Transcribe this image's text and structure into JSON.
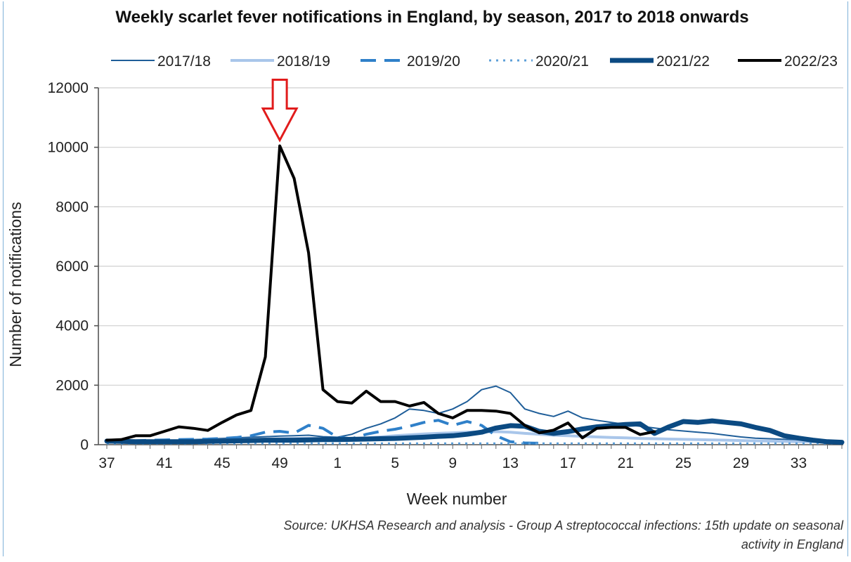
{
  "chart_data": {
    "type": "line",
    "title": "Weekly scarlet fever notifications in England, by season, 2017 to 2018 onwards",
    "xlabel": "Week number",
    "ylabel": "Number of notifications",
    "ylim": [
      0,
      12000
    ],
    "yticks": [
      "0",
      "2000",
      "4000",
      "6000",
      "8000",
      "10000",
      "12000"
    ],
    "xticks": [
      "37",
      "41",
      "45",
      "49",
      "1",
      "5",
      "9",
      "13",
      "17",
      "21",
      "25",
      "29",
      "33"
    ],
    "weeks": [
      37,
      38,
      39,
      40,
      41,
      42,
      43,
      44,
      45,
      46,
      47,
      48,
      49,
      50,
      51,
      52,
      1,
      2,
      3,
      4,
      5,
      6,
      7,
      8,
      9,
      10,
      11,
      12,
      13,
      14,
      15,
      16,
      17,
      18,
      19,
      20,
      21,
      22,
      23,
      24,
      25,
      26,
      27,
      28,
      29,
      30,
      31,
      32,
      33,
      34,
      35,
      36
    ],
    "grid": true,
    "legend_position": "top",
    "series": [
      {
        "name": "2017/18",
        "color": "#1f5e99",
        "width": 2,
        "dash": "",
        "values": [
          100,
          110,
          120,
          130,
          140,
          150,
          170,
          190,
          210,
          230,
          250,
          270,
          290,
          300,
          320,
          270,
          250,
          350,
          550,
          700,
          900,
          1200,
          1150,
          1050,
          1200,
          1450,
          1850,
          1970,
          1750,
          1200,
          1050,
          950,
          1130,
          900,
          820,
          750,
          680,
          620,
          560,
          500,
          460,
          420,
          380,
          320,
          260,
          220,
          200,
          180,
          160,
          140,
          null,
          null
        ]
      },
      {
        "name": "2018/19",
        "color": "#a9c6ea",
        "width": 4,
        "dash": "",
        "values": [
          80,
          90,
          100,
          110,
          120,
          130,
          140,
          150,
          160,
          170,
          180,
          190,
          200,
          210,
          220,
          200,
          180,
          200,
          230,
          260,
          300,
          330,
          360,
          380,
          400,
          420,
          430,
          440,
          420,
          380,
          350,
          320,
          300,
          280,
          260,
          240,
          230,
          210,
          200,
          190,
          180,
          170,
          160,
          150,
          140,
          130,
          120,
          110,
          100,
          100,
          100,
          100
        ]
      },
      {
        "name": "2019/20",
        "color": "#2f80c9",
        "width": 4,
        "dash": "22,12",
        "values": [
          90,
          110,
          130,
          150,
          160,
          170,
          180,
          190,
          210,
          240,
          300,
          420,
          450,
          390,
          650,
          550,
          250,
          200,
          350,
          450,
          520,
          620,
          750,
          820,
          650,
          780,
          650,
          300,
          100,
          60,
          50,
          null,
          null,
          null,
          null,
          null,
          null,
          null,
          null,
          null,
          null,
          null,
          null,
          null,
          null,
          null,
          null,
          null,
          null,
          null,
          null,
          null
        ]
      },
      {
        "name": "2020/21",
        "color": "#5d9fd8",
        "width": 3,
        "dash": "3,7",
        "values": [
          40,
          40,
          40,
          40,
          40,
          40,
          40,
          40,
          40,
          40,
          40,
          40,
          40,
          40,
          40,
          40,
          40,
          40,
          40,
          40,
          40,
          40,
          40,
          40,
          40,
          40,
          40,
          40,
          40,
          40,
          40,
          40,
          40,
          40,
          40,
          40,
          40,
          40,
          40,
          40,
          40,
          40,
          40,
          40,
          40,
          40,
          40,
          40,
          40,
          40,
          40,
          40
        ]
      },
      {
        "name": "2021/22",
        "color": "#0b4a82",
        "width": 7,
        "dash": "",
        "values": [
          120,
          110,
          100,
          100,
          100,
          100,
          100,
          110,
          120,
          130,
          140,
          150,
          150,
          150,
          160,
          170,
          170,
          180,
          190,
          200,
          210,
          230,
          250,
          280,
          300,
          350,
          420,
          560,
          640,
          620,
          450,
          380,
          440,
          530,
          600,
          640,
          680,
          700,
          380,
          600,
          780,
          750,
          800,
          750,
          700,
          580,
          480,
          300,
          220,
          150,
          100,
          80
        ]
      },
      {
        "name": "2022/23",
        "color": "#000000",
        "width": 4,
        "dash": "",
        "values": [
          150,
          170,
          300,
          300,
          450,
          600,
          550,
          480,
          750,
          1000,
          1150,
          2950,
          10050,
          8950,
          6450,
          1850,
          1450,
          1400,
          1800,
          1450,
          1450,
          1300,
          1420,
          1050,
          900,
          1150,
          1150,
          1130,
          1050,
          650,
          400,
          490,
          730,
          230,
          550,
          580,
          580,
          340,
          440,
          null,
          null,
          null,
          null,
          null,
          null,
          null,
          null,
          null,
          null,
          null,
          null,
          null
        ]
      }
    ],
    "annotations": [
      {
        "type": "arrow",
        "target_week": 49,
        "target_value": 10050,
        "color": "#e11c1c"
      }
    ],
    "source": "Source: UKHSA Research and analysis - Group A streptococcal infections: 15th update on seasonal activity in England"
  }
}
